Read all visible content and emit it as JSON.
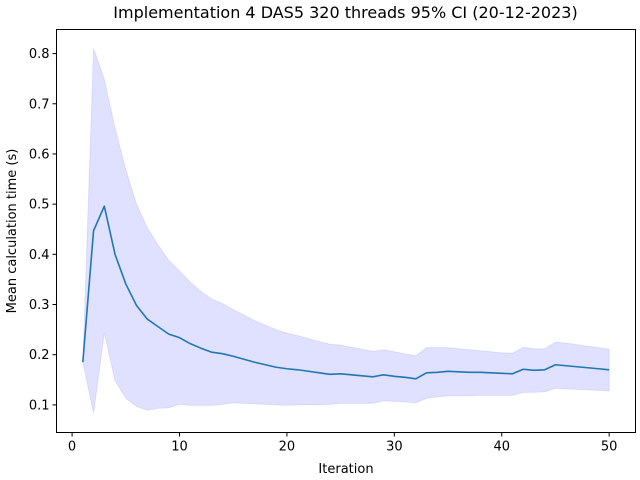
{
  "chart_data": {
    "type": "line",
    "title": "Implementation 4 DAS5 320 threads 95% CI (20-12-2023)",
    "xlabel": "Iteration",
    "ylabel": "Mean calculation time (s)",
    "xlim": [
      -1.45,
      52.45
    ],
    "ylim": [
      0.045,
      0.848
    ],
    "xticks": [
      0,
      10,
      20,
      30,
      40,
      50
    ],
    "yticks": [
      0.1,
      0.2,
      0.3,
      0.4,
      0.5,
      0.6,
      0.7,
      0.8
    ],
    "grid": false,
    "colors": {
      "line": "#1f77b4",
      "band": "#0000ff",
      "band_opacity": 0.12
    },
    "series": [
      {
        "x": [
          1,
          2,
          3,
          4,
          5,
          6,
          7,
          8,
          9,
          10,
          11,
          12,
          13,
          14,
          15,
          16,
          17,
          18,
          19,
          20,
          21,
          22,
          23,
          24,
          25,
          26,
          27,
          28,
          29,
          30,
          31,
          32,
          33,
          34,
          35,
          36,
          37,
          38,
          39,
          40,
          41,
          42,
          43,
          44,
          45,
          46,
          47,
          48,
          49,
          50
        ],
        "mean": [
          0.185,
          0.447,
          0.496,
          0.4,
          0.341,
          0.298,
          0.271,
          0.256,
          0.241,
          0.234,
          0.222,
          0.213,
          0.205,
          0.202,
          0.197,
          0.191,
          0.185,
          0.18,
          0.175,
          0.172,
          0.17,
          0.167,
          0.164,
          0.161,
          0.162,
          0.16,
          0.158,
          0.156,
          0.16,
          0.157,
          0.155,
          0.152,
          0.164,
          0.165,
          0.167,
          0.166,
          0.165,
          0.165,
          0.164,
          0.163,
          0.162,
          0.171,
          0.169,
          0.17,
          0.18,
          0.178,
          0.176,
          0.174,
          0.172,
          0.17
        ],
        "lower": [
          0.185,
          0.083,
          0.243,
          0.148,
          0.113,
          0.097,
          0.089,
          0.093,
          0.094,
          0.101,
          0.099,
          0.099,
          0.099,
          0.101,
          0.104,
          0.103,
          0.102,
          0.101,
          0.1,
          0.099,
          0.1,
          0.1,
          0.1,
          0.101,
          0.103,
          0.103,
          0.103,
          0.103,
          0.108,
          0.107,
          0.106,
          0.104,
          0.113,
          0.116,
          0.118,
          0.118,
          0.118,
          0.119,
          0.119,
          0.119,
          0.119,
          0.125,
          0.125,
          0.126,
          0.133,
          0.132,
          0.131,
          0.13,
          0.129,
          0.128
        ],
        "upper": [
          0.185,
          0.811,
          0.749,
          0.652,
          0.569,
          0.5,
          0.453,
          0.419,
          0.388,
          0.367,
          0.345,
          0.326,
          0.311,
          0.302,
          0.29,
          0.279,
          0.268,
          0.259,
          0.25,
          0.243,
          0.238,
          0.232,
          0.226,
          0.221,
          0.219,
          0.215,
          0.211,
          0.207,
          0.21,
          0.206,
          0.202,
          0.198,
          0.214,
          0.214,
          0.214,
          0.212,
          0.21,
          0.208,
          0.206,
          0.204,
          0.203,
          0.215,
          0.212,
          0.212,
          0.225,
          0.223,
          0.22,
          0.217,
          0.214,
          0.211
        ]
      }
    ]
  }
}
